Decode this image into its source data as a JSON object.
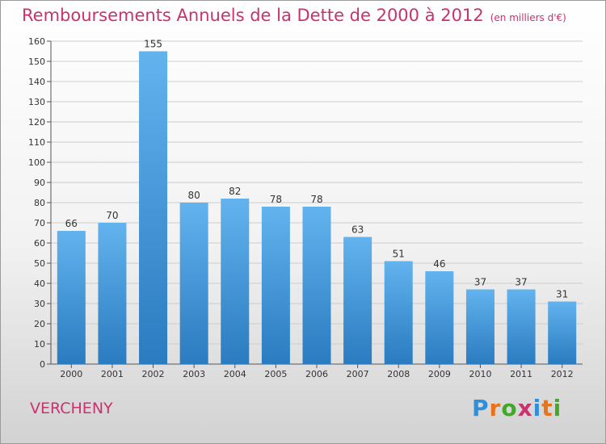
{
  "title": "Remboursements Annuels de la Dette de 2000 à 2012",
  "unit": "(en milliers d'€)",
  "commune": "VERCHENY",
  "logo": {
    "letters": [
      "P",
      "r",
      "o",
      "x",
      "i",
      "t",
      "i"
    ],
    "colors": [
      "#2f8fd8",
      "#e8731a",
      "#43a829",
      "#c8326e",
      "#2f8fd8",
      "#e8731a",
      "#43a829"
    ]
  },
  "colors": {
    "bar_light": "#62b3ee",
    "bar_dark": "#2a7bc0",
    "title": "#c8326e",
    "grid": "#cccccc"
  },
  "chart_data": {
    "type": "bar",
    "categories": [
      "2000",
      "2001",
      "2002",
      "2003",
      "2004",
      "2005",
      "2006",
      "2007",
      "2008",
      "2009",
      "2010",
      "2011",
      "2012"
    ],
    "values": [
      66,
      70,
      155,
      80,
      82,
      78,
      78,
      63,
      51,
      46,
      37,
      37,
      31
    ],
    "ylim": [
      0,
      160
    ],
    "yticks": [
      0,
      10,
      20,
      30,
      40,
      50,
      60,
      70,
      80,
      90,
      100,
      110,
      120,
      130,
      140,
      150,
      160
    ],
    "grid": true,
    "data_labels": true
  }
}
